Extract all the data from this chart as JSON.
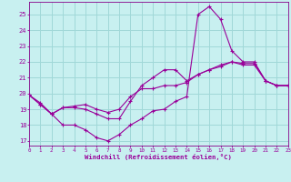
{
  "xlabel": "Windchill (Refroidissement éolien,°C)",
  "background_color": "#c8f0f0",
  "grid_color": "#a0d8d8",
  "line_color": "#990099",
  "spine_color": "#880088",
  "x_ticks": [
    0,
    1,
    2,
    3,
    4,
    5,
    6,
    7,
    8,
    9,
    10,
    11,
    12,
    13,
    14,
    15,
    16,
    17,
    18,
    19,
    20,
    21,
    22,
    23
  ],
  "y_ticks": [
    17,
    18,
    19,
    20,
    21,
    22,
    23,
    24,
    25
  ],
  "xlim": [
    0,
    23
  ],
  "ylim": [
    16.7,
    25.8
  ],
  "series": [
    [
      19.9,
      19.4,
      18.7,
      18.0,
      18.0,
      17.7,
      17.2,
      17.0,
      17.4,
      18.0,
      18.4,
      18.9,
      19.0,
      19.5,
      19.8,
      25.0,
      25.5,
      24.7,
      22.7,
      22.0,
      22.0,
      20.8,
      20.5,
      20.5
    ],
    [
      19.9,
      19.3,
      18.7,
      19.1,
      19.1,
      19.0,
      18.7,
      18.4,
      18.4,
      19.5,
      20.5,
      21.0,
      21.5,
      21.5,
      20.8,
      21.2,
      21.5,
      21.7,
      22.0,
      21.8,
      21.8,
      20.8,
      20.5,
      20.5
    ],
    [
      19.9,
      19.3,
      18.7,
      19.1,
      19.2,
      19.3,
      19.0,
      18.8,
      19.0,
      19.8,
      20.3,
      20.3,
      20.5,
      20.5,
      20.7,
      21.2,
      21.5,
      21.8,
      22.0,
      21.9,
      21.9,
      20.8,
      20.5,
      20.5
    ]
  ]
}
